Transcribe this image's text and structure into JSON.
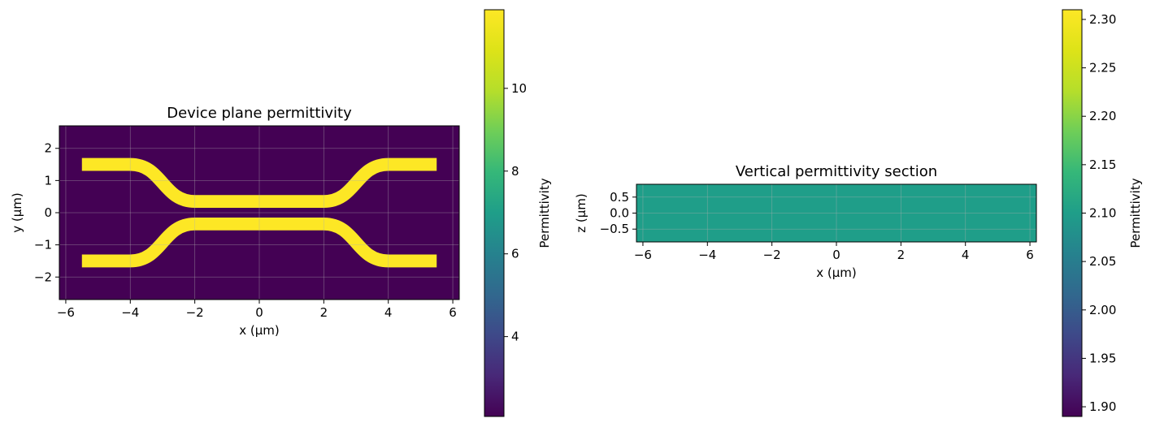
{
  "chart_data": [
    {
      "type": "heatmap",
      "title": "Device plane permittivity",
      "xlabel": "x (µm)",
      "ylabel": "y (µm)",
      "xlim": [
        -6.2,
        6.2
      ],
      "ylim": [
        -2.7,
        2.7
      ],
      "xticks": [
        -6,
        -4,
        -2,
        0,
        2,
        4,
        6
      ],
      "yticks": [
        -2,
        -1,
        0,
        1,
        2
      ],
      "grid": true,
      "background_value": 2.07,
      "waveguide_value": 11.9,
      "waveguide_width": 0.4,
      "waveguides": [
        {
          "name": "",
          "x": [
            -5.5,
            -4.0,
            -2.0,
            2.0,
            4.0,
            5.5
          ],
          "y": [
            1.5,
            1.5,
            0.35,
            0.35,
            1.5,
            1.5
          ]
        },
        {
          "name": "",
          "x": [
            -5.5,
            -4.0,
            -2.0,
            2.0,
            4.0,
            5.5
          ],
          "y": [
            -1.5,
            -1.5,
            -0.35,
            -0.35,
            -1.5,
            -1.5
          ]
        }
      ],
      "colorbar": {
        "label": "Permittivity",
        "range": [
          2.07,
          11.9
        ],
        "ticks": [
          4,
          6,
          8,
          10
        ]
      }
    },
    {
      "type": "heatmap",
      "title": "Vertical permittivity section",
      "xlabel": "x (µm)",
      "ylabel": "z (µm)",
      "xlim": [
        -6.2,
        6.2
      ],
      "ylim": [
        -0.9,
        0.9
      ],
      "xticks": [
        -6,
        -4,
        -2,
        0,
        2,
        4,
        6
      ],
      "yticks": [
        0.5,
        0.0,
        -0.5
      ],
      "grid": true,
      "uniform_value": 2.1,
      "colorbar": {
        "label": "Permittivity",
        "range": [
          1.89,
          2.31
        ],
        "ticks": [
          1.9,
          1.95,
          2.0,
          2.05,
          2.1,
          2.15,
          2.2,
          2.25,
          2.3
        ]
      }
    }
  ]
}
